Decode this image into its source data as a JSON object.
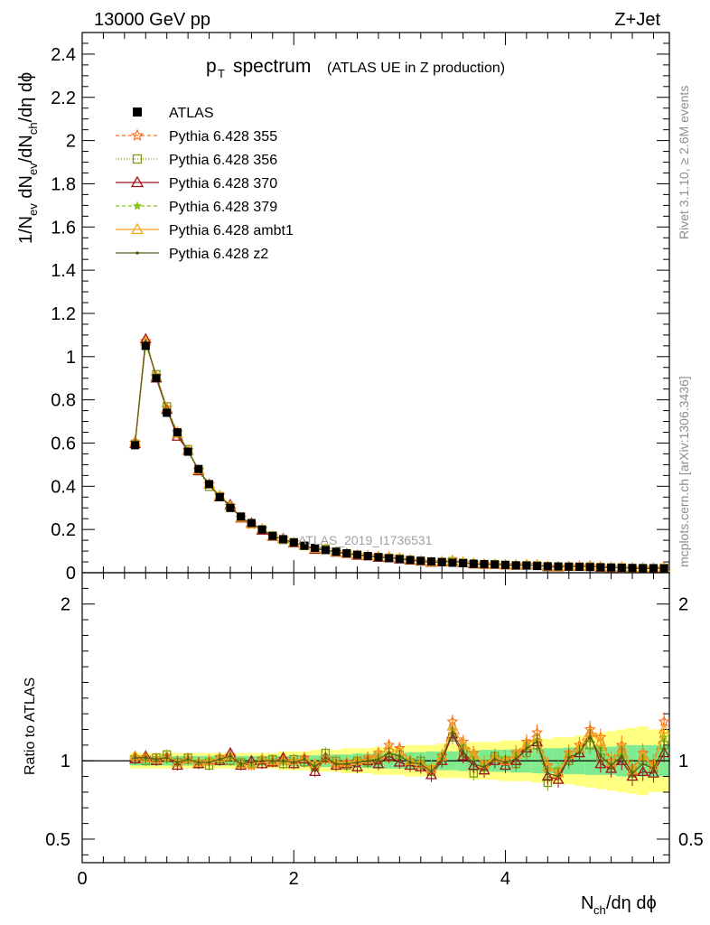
{
  "header": {
    "energy_label": "13000 GeV pp",
    "process_label": "Z+Jet"
  },
  "title": {
    "main": "p",
    "main_sub": "T",
    "main_rest": "spectrum",
    "paren": "(ATLAS UE in Z production)"
  },
  "side_labels": {
    "rivet": "Rivet 3.1.10, ≥ 2.6M events",
    "mcplots": "mcplots.cern.ch [arXiv:1306.3436]"
  },
  "watermark": "ATLAS_2019_I1736531",
  "axes": {
    "xlabel_main": "N",
    "xlabel_sub": "ch",
    "xlabel_rest": "/dη dϕ",
    "ylabel_top": "1/N_ev dN_ev/dN_ch/dη dϕ",
    "ylabel_top_parts": [
      "1/N",
      "ev",
      " dN",
      "ev",
      "/dN",
      "ch",
      "/dη dϕ"
    ],
    "ylabel_bottom": "Ratio to ATLAS"
  },
  "legend": [
    {
      "label": "ATLAS",
      "color": "#000000",
      "marker": "square-filled"
    },
    {
      "label": "Pythia 6.428 355",
      "color": "#ff6a13",
      "marker": "star",
      "dash": "4,3"
    },
    {
      "label": "Pythia 6.428 356",
      "color": "#7f9a1a",
      "marker": "square-open",
      "dash": "1,2"
    },
    {
      "label": "Pythia 6.428 370",
      "color": "#a0121b",
      "marker": "triangle-open"
    },
    {
      "label": "Pythia 6.428 379",
      "color": "#86c21a",
      "marker": "star-small",
      "dash": "4,3"
    },
    {
      "label": "Pythia 6.428 ambt1",
      "color": "#f4a21a",
      "marker": "triangle-open"
    },
    {
      "label": "Pythia 6.428 z2",
      "color": "#5b5b12",
      "marker": "dot"
    }
  ],
  "chart_data": {
    "type": "line",
    "xlim": [
      0,
      5.55
    ],
    "top_ylim": [
      0,
      2.5
    ],
    "top_yticks": [
      0,
      0.2,
      0.4,
      0.6,
      0.8,
      1,
      1.2,
      1.4,
      1.6,
      1.8,
      2,
      2.2,
      2.4
    ],
    "top_yticklabels": [
      "0",
      "0.2",
      "0.4",
      "0.6",
      "0.8",
      "1",
      "1.2",
      "1.4",
      "1.6",
      "1.8",
      "2",
      "2.2",
      "2.4"
    ],
    "ratio_ylim": [
      0.35,
      2.2
    ],
    "ratio_yticks": [
      0.5,
      1,
      2
    ],
    "ratio_yticklabels": [
      "0.5",
      "1",
      "2"
    ],
    "xticks": [
      0,
      2,
      4
    ],
    "xticklabels": [
      "0",
      "2",
      "4"
    ],
    "x": [
      0.5,
      0.6,
      0.7,
      0.8,
      0.9,
      1.0,
      1.1,
      1.2,
      1.3,
      1.4,
      1.5,
      1.6,
      1.7,
      1.8,
      1.9,
      2.0,
      2.1,
      2.2,
      2.3,
      2.4,
      2.5,
      2.6,
      2.7,
      2.8,
      2.9,
      3.0,
      3.1,
      3.2,
      3.3,
      3.4,
      3.5,
      3.6,
      3.7,
      3.8,
      3.9,
      4.0,
      4.1,
      4.2,
      4.3,
      4.4,
      4.5,
      4.6,
      4.7,
      4.8,
      4.9,
      5.0,
      5.1,
      5.2,
      5.3,
      5.4,
      5.5
    ],
    "atlas": [
      0.59,
      1.05,
      0.9,
      0.74,
      0.65,
      0.56,
      0.48,
      0.41,
      0.35,
      0.3,
      0.26,
      0.23,
      0.2,
      0.17,
      0.155,
      0.14,
      0.125,
      0.115,
      0.105,
      0.097,
      0.09,
      0.083,
      0.077,
      0.072,
      0.067,
      0.063,
      0.059,
      0.055,
      0.052,
      0.049,
      0.046,
      0.044,
      0.042,
      0.04,
      0.038,
      0.036,
      0.034,
      0.033,
      0.031,
      0.03,
      0.029,
      0.028,
      0.027,
      0.026,
      0.025,
      0.024,
      0.023,
      0.022,
      0.021,
      0.021,
      0.02
    ],
    "band_inner": [
      0.03,
      0.03,
      0.03,
      0.03,
      0.03,
      0.03,
      0.03,
      0.03,
      0.03,
      0.03,
      0.03,
      0.03,
      0.03,
      0.03,
      0.03,
      0.035,
      0.035,
      0.035,
      0.04,
      0.04,
      0.04,
      0.045,
      0.045,
      0.05,
      0.05,
      0.05,
      0.055,
      0.055,
      0.06,
      0.06,
      0.06,
      0.065,
      0.065,
      0.07,
      0.07,
      0.07,
      0.075,
      0.075,
      0.08,
      0.08,
      0.08,
      0.085,
      0.085,
      0.09,
      0.09,
      0.09,
      0.1,
      0.1,
      0.1,
      0.1,
      0.1
    ],
    "band_outer": [
      0.05,
      0.05,
      0.05,
      0.05,
      0.05,
      0.05,
      0.05,
      0.05,
      0.05,
      0.05,
      0.05,
      0.05,
      0.05,
      0.05,
      0.06,
      0.06,
      0.06,
      0.07,
      0.07,
      0.07,
      0.08,
      0.08,
      0.08,
      0.09,
      0.09,
      0.09,
      0.1,
      0.1,
      0.1,
      0.11,
      0.11,
      0.11,
      0.12,
      0.12,
      0.12,
      0.13,
      0.13,
      0.13,
      0.14,
      0.14,
      0.15,
      0.15,
      0.16,
      0.17,
      0.18,
      0.19,
      0.2,
      0.21,
      0.22,
      0.2,
      0.2
    ],
    "series": [
      {
        "name": "Pythia 6.428 355",
        "ratio": [
          1.02,
          1.02,
          1.01,
          1.03,
          1.0,
          1.01,
          0.99,
          1.0,
          1.02,
          1.03,
          0.98,
          0.97,
          1.01,
          0.99,
          1.01,
          1.0,
          1.02,
          0.97,
          1.01,
          0.98,
          0.99,
          1.0,
          1.02,
          1.05,
          1.1,
          1.08,
          1.0,
          0.98,
          0.95,
          1.03,
          1.25,
          1.12,
          1.05,
          0.98,
          1.02,
          1.0,
          1.05,
          1.12,
          1.18,
          0.97,
          0.9,
          1.05,
          1.1,
          1.2,
          1.15,
          1.0,
          1.1,
          0.95,
          1.05,
          0.98,
          1.25
        ]
      },
      {
        "name": "Pythia 6.428 356",
        "ratio": [
          1.01,
          1.0,
          1.02,
          1.04,
          0.99,
          1.02,
          0.98,
          0.97,
          1.01,
          1.0,
          0.99,
          0.98,
          1.0,
          1.01,
          0.98,
          1.01,
          0.99,
          0.96,
          1.05,
          1.0,
          0.97,
          1.0,
          0.99,
          1.0,
          1.02,
          1.04,
          0.99,
          1.0,
          0.93,
          1.02,
          1.15,
          1.05,
          0.92,
          0.96,
          1.03,
          1.0,
          0.98,
          1.05,
          1.1,
          0.86,
          0.93,
          1.0,
          1.05,
          1.1,
          1.02,
          0.97,
          1.05,
          0.92,
          1.0,
          0.95,
          1.1
        ]
      },
      {
        "name": "Pythia 6.428 370",
        "ratio": [
          1.01,
          1.03,
          1.0,
          1.02,
          0.97,
          1.01,
          0.98,
          1.0,
          1.0,
          1.05,
          0.97,
          1.0,
          0.98,
          0.99,
          1.02,
          0.98,
          1.01,
          0.93,
          1.02,
          0.97,
          0.98,
          0.96,
          1.0,
          0.98,
          1.03,
          0.99,
          0.97,
          0.96,
          0.91,
          1.0,
          1.17,
          1.03,
          0.97,
          0.94,
          1.0,
          0.97,
          1.0,
          1.08,
          1.12,
          0.9,
          0.88,
          1.02,
          1.05,
          1.18,
          0.98,
          0.95,
          1.0,
          0.9,
          0.93,
          0.92,
          1.05
        ]
      },
      {
        "name": "Pythia 6.428 379",
        "ratio": [
          1.02,
          1.01,
          1.02,
          1.01,
          1.0,
          1.0,
          0.99,
          1.01,
          1.01,
          1.02,
          0.99,
          0.98,
          1.02,
          1.0,
          1.0,
          1.0,
          1.01,
          0.98,
          1.02,
          0.99,
          0.98,
          1.01,
          1.0,
          1.02,
          1.05,
          1.03,
          1.0,
          0.99,
          0.96,
          1.02,
          1.2,
          1.1,
          1.02,
          0.99,
          1.03,
          1.02,
          1.04,
          1.1,
          1.13,
          0.95,
          0.95,
          1.04,
          1.08,
          1.15,
          1.08,
          1.0,
          1.05,
          0.94,
          1.02,
          0.98,
          1.15
        ]
      },
      {
        "name": "Pythia 6.428 ambt1",
        "ratio": [
          1.03,
          1.02,
          1.01,
          1.03,
          0.99,
          1.01,
          0.99,
          1.0,
          1.02,
          1.03,
          0.98,
          0.98,
          1.01,
          1.0,
          1.0,
          1.0,
          1.02,
          0.98,
          1.01,
          0.99,
          0.99,
          1.0,
          1.01,
          1.04,
          1.08,
          1.06,
          1.0,
          0.98,
          0.95,
          1.03,
          1.22,
          1.1,
          1.04,
          0.98,
          1.02,
          1.0,
          1.04,
          1.1,
          1.15,
          0.96,
          0.92,
          1.04,
          1.08,
          1.18,
          1.12,
          0.99,
          1.08,
          0.94,
          1.03,
          0.97,
          1.2
        ]
      },
      {
        "name": "Pythia 6.428 z2",
        "ratio": [
          1.02,
          1.02,
          1.01,
          1.02,
          0.99,
          1.01,
          0.99,
          0.99,
          1.01,
          1.03,
          0.98,
          0.99,
          1.0,
          1.0,
          1.0,
          0.99,
          1.01,
          0.96,
          1.02,
          0.98,
          0.98,
          0.99,
          1.0,
          1.01,
          1.05,
          1.03,
          0.99,
          0.98,
          0.93,
          1.01,
          1.18,
          1.06,
          0.98,
          0.96,
          1.01,
          0.99,
          1.01,
          1.08,
          1.12,
          0.92,
          0.9,
          1.02,
          1.05,
          1.15,
          1.03,
          0.97,
          1.03,
          0.92,
          0.98,
          0.95,
          1.08
        ]
      }
    ]
  }
}
